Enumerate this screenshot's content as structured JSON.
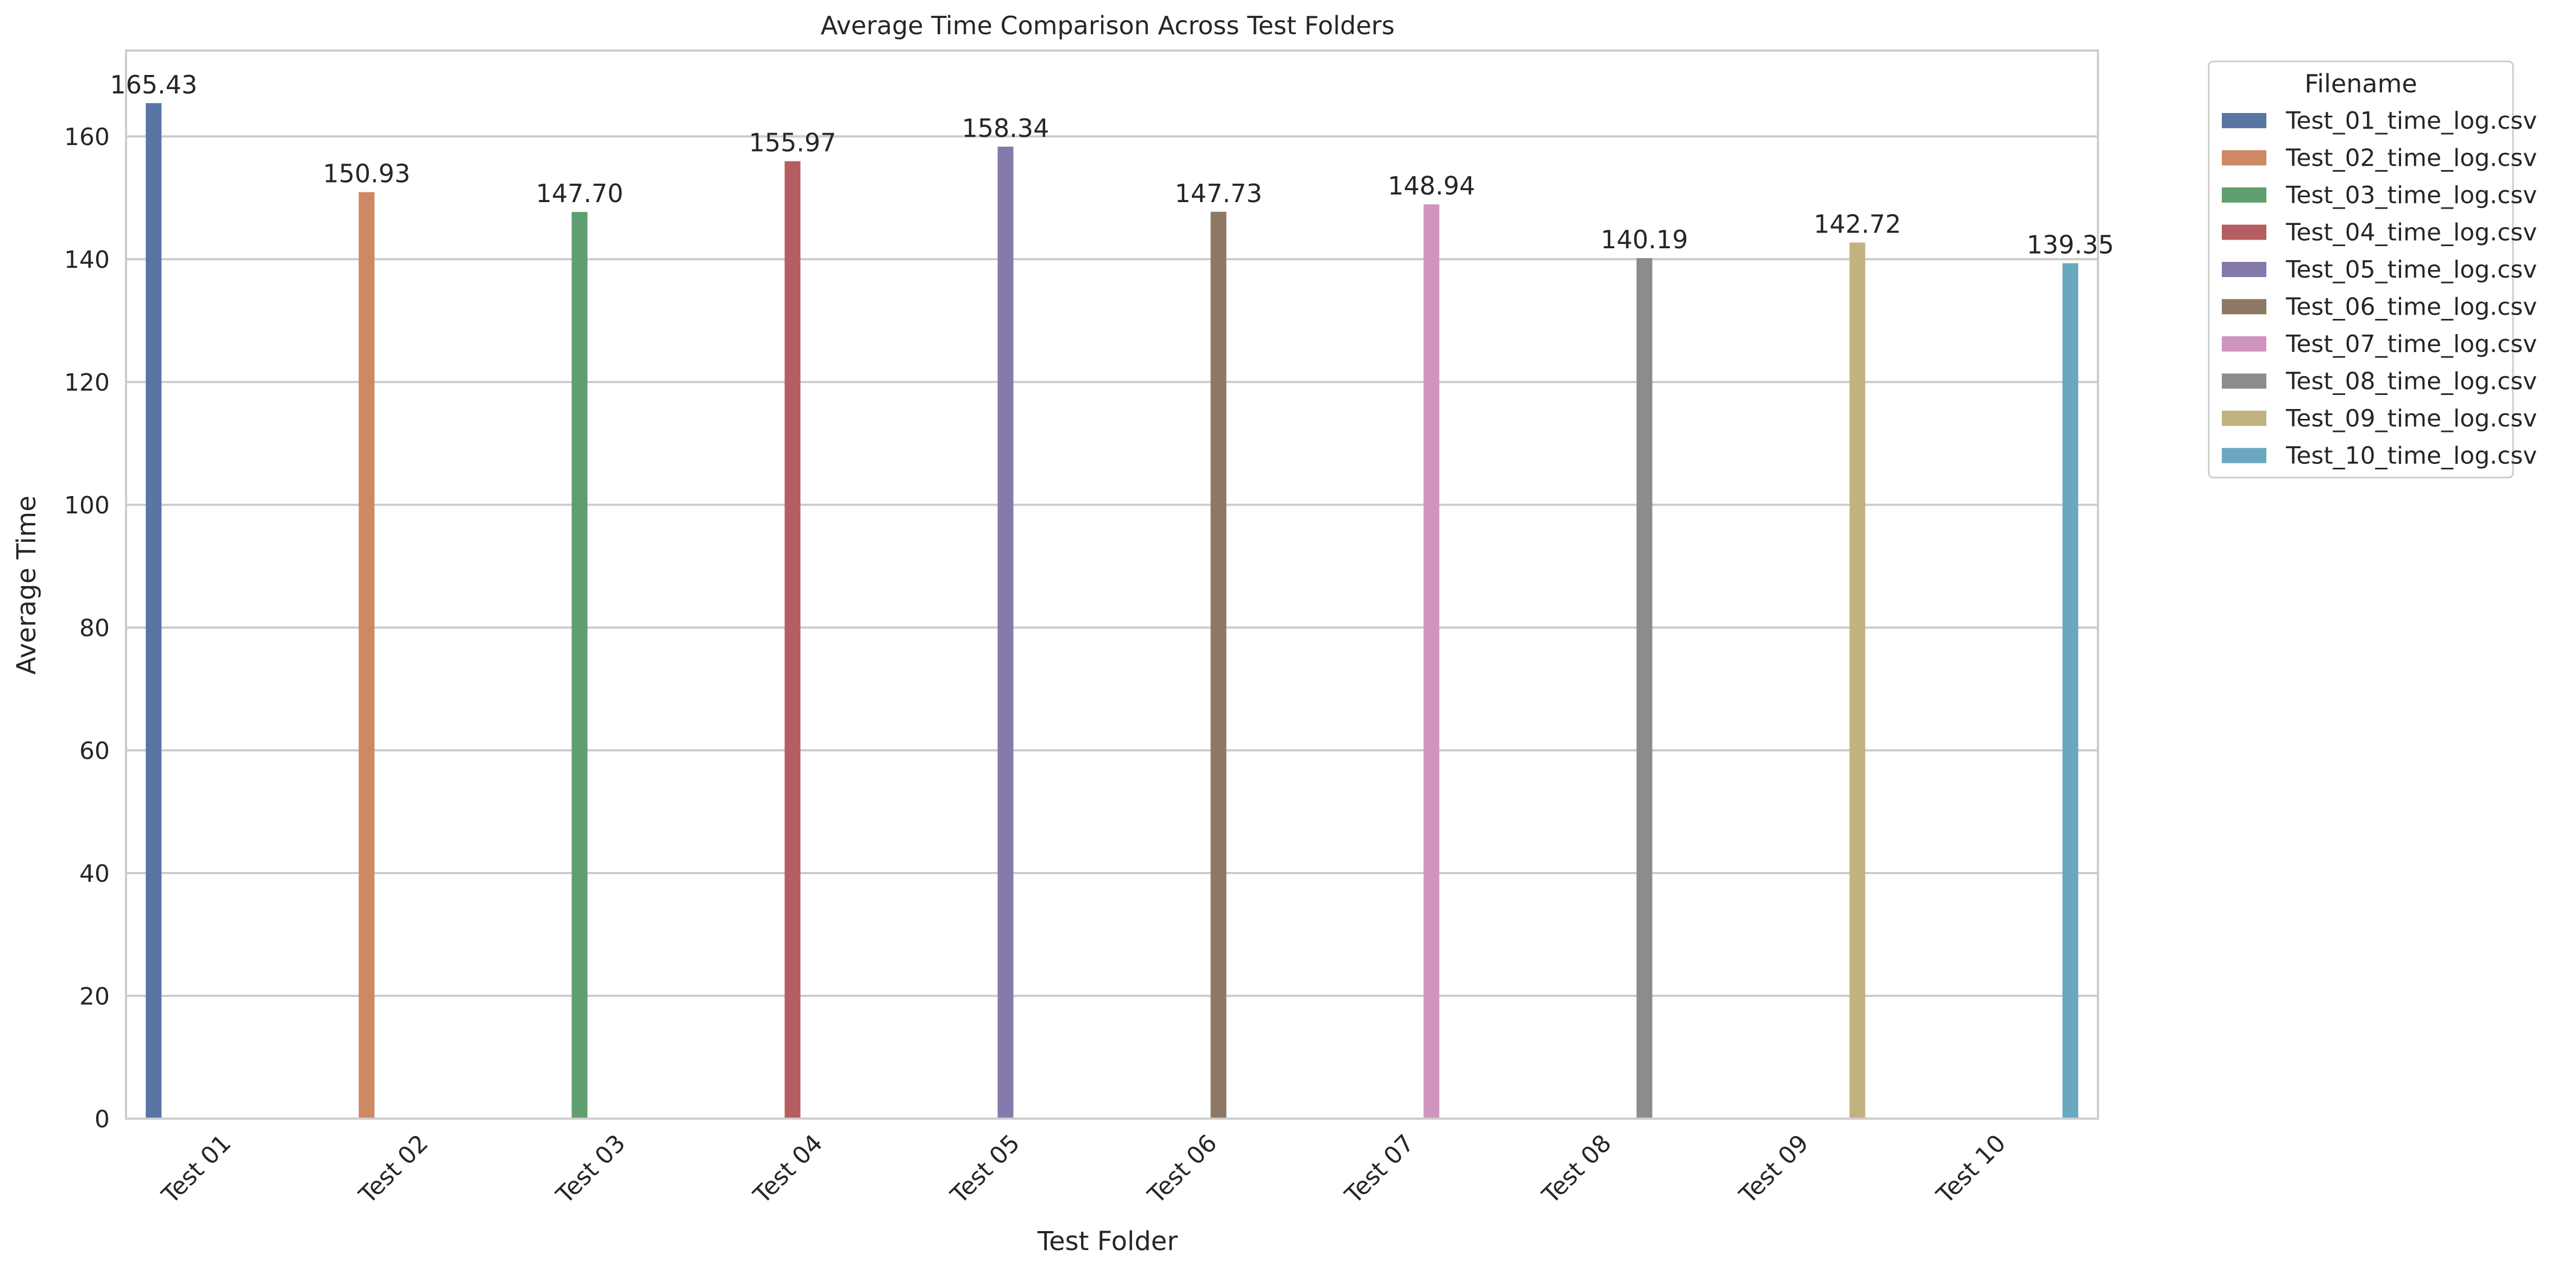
{
  "chart_data": {
    "type": "bar",
    "title": "Average Time Comparison Across Test Folders",
    "xlabel": "Test Folder",
    "ylabel": "Average Time",
    "ylim": [
      0,
      174
    ],
    "yticks": [
      0,
      20,
      40,
      60,
      80,
      100,
      120,
      140,
      160
    ],
    "grid": "horizontal",
    "categories": [
      "Test 01",
      "Test 02",
      "Test 03",
      "Test 04",
      "Test 05",
      "Test 06",
      "Test 07",
      "Test 08",
      "Test 09",
      "Test 10"
    ],
    "legend": {
      "title": "Filename",
      "placement": "outside-top-right"
    },
    "series": [
      {
        "name": "Test_01_time_log.csv",
        "color": "#5875a4",
        "category": "Test 01",
        "value": 165.43,
        "label": "165.43"
      },
      {
        "name": "Test_02_time_log.csv",
        "color": "#cc8963",
        "category": "Test 02",
        "value": 150.93,
        "label": "150.93"
      },
      {
        "name": "Test_03_time_log.csv",
        "color": "#5f9e6e",
        "category": "Test 03",
        "value": 147.7,
        "label": "147.70"
      },
      {
        "name": "Test_04_time_log.csv",
        "color": "#b55d60",
        "category": "Test 04",
        "value": 155.97,
        "label": "155.97"
      },
      {
        "name": "Test_05_time_log.csv",
        "color": "#857aab",
        "category": "Test 05",
        "value": 158.34,
        "label": "158.34"
      },
      {
        "name": "Test_06_time_log.csv",
        "color": "#8d7866",
        "category": "Test 06",
        "value": 147.73,
        "label": "147.73"
      },
      {
        "name": "Test_07_time_log.csv",
        "color": "#d095bf",
        "category": "Test 07",
        "value": 148.94,
        "label": "148.94"
      },
      {
        "name": "Test_08_time_log.csv",
        "color": "#8c8c8c",
        "category": "Test 08",
        "value": 140.19,
        "label": "140.19"
      },
      {
        "name": "Test_09_time_log.csv",
        "color": "#c1b37f",
        "category": "Test 09",
        "value": 142.72,
        "label": "142.72"
      },
      {
        "name": "Test_10_time_log.csv",
        "color": "#6aa8bf",
        "category": "Test 10",
        "value": 139.35,
        "label": "139.35"
      }
    ]
  }
}
